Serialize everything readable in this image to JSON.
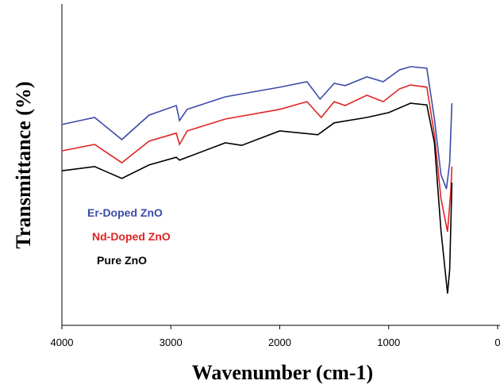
{
  "chart_data": {
    "type": "line",
    "x_label": "Wavenumber (cm-1)",
    "y_label": "Transmittance (%)",
    "xlim": [
      4000,
      0
    ],
    "xticks": [
      4000,
      3000,
      2000,
      1000,
      0
    ],
    "ylim": [
      0,
      100
    ],
    "series": [
      {
        "name": "Er-Doped ZnO",
        "color": "#3b4ba8",
        "x": [
          4000,
          3700,
          3450,
          3200,
          2950,
          2920,
          2850,
          2500,
          2000,
          1750,
          1630,
          1500,
          1400,
          1200,
          1050,
          900,
          800,
          650,
          580,
          520,
          470,
          440,
          420
        ],
        "values": [
          62.5,
          64.7,
          57.8,
          65.4,
          68.4,
          63.7,
          67.2,
          71.1,
          74.1,
          75.8,
          70.4,
          75.3,
          74.6,
          77.3,
          75.8,
          79.5,
          80.5,
          80,
          64.2,
          46.9,
          42.5,
          50.6,
          69.1
        ]
      },
      {
        "name": "Nd-Doped ZnO",
        "color": "#e02424",
        "x": [
          4000,
          3700,
          3450,
          3200,
          2950,
          2920,
          2850,
          2500,
          2000,
          1750,
          1620,
          1500,
          1400,
          1200,
          1050,
          900,
          800,
          650,
          580,
          520,
          460,
          430,
          420
        ],
        "values": [
          54.3,
          56.3,
          50.6,
          57.3,
          59.8,
          56.3,
          60.5,
          64.2,
          67.2,
          69.6,
          64.7,
          69.6,
          68.4,
          71.6,
          69.6,
          73.6,
          74.8,
          74.1,
          59.3,
          39.5,
          29.1,
          42,
          49.4
        ]
      },
      {
        "name": "Pure ZnO",
        "color": "#000000",
        "x": [
          4000,
          3700,
          3450,
          3200,
          2950,
          2920,
          2500,
          2350,
          2000,
          1650,
          1500,
          1200,
          1000,
          800,
          650,
          580,
          520,
          460,
          440,
          420
        ],
        "values": [
          48.1,
          49.4,
          45.7,
          49.9,
          52.3,
          51.4,
          56.8,
          56,
          60.5,
          59.3,
          63,
          64.7,
          66.2,
          69.1,
          68.6,
          56.8,
          29.6,
          9.9,
          17.3,
          44.4
        ]
      }
    ]
  }
}
